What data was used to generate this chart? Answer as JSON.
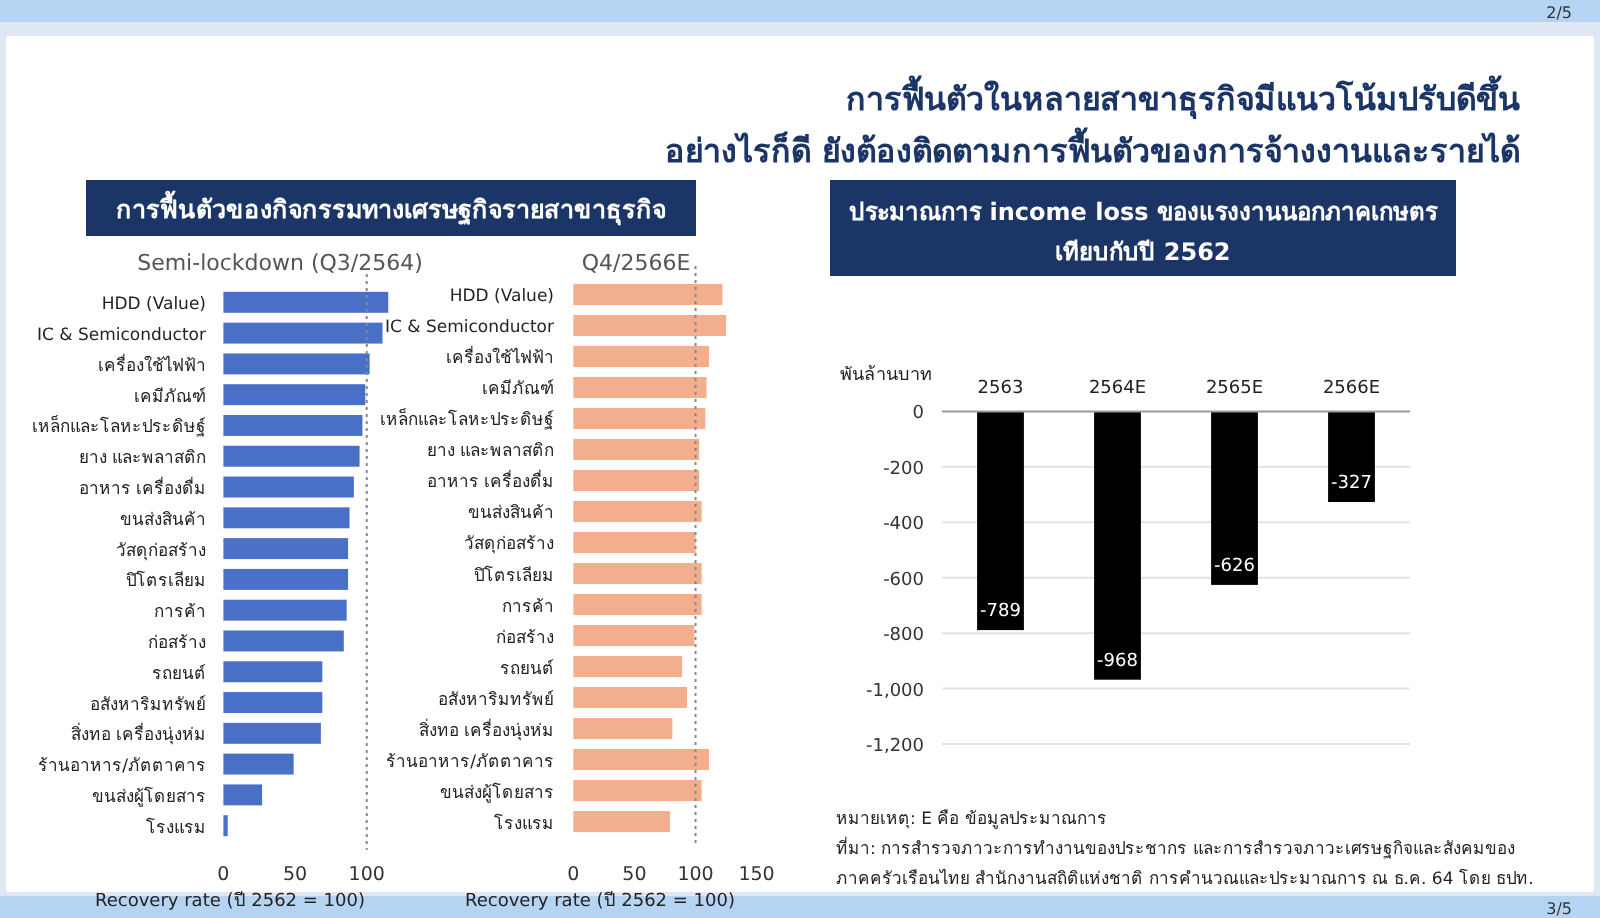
{
  "chart_data": [
    {
      "type": "bar",
      "orientation": "horizontal",
      "title": "การฟื้นตัวของกิจกรรมทางเศรษฐกิจรายสาขาธุรกิจ",
      "subtitle": "Semi-lockdown (Q3/2564)",
      "xlabel": "Recovery rate (ปี 2562 = 100)",
      "annotations": [
        "การฟื้นตัวในหลายสาขาธุรกิจมีแนวโน้มปรับดีขึ้น",
        "อย่างไรก็ดี ยังต้องติดตามการฟื้นตัวของการจ้างงานและรายได้",
        "2/5"
      ],
      "categories": [
        "HDD (Value)",
        "IC & Semiconductor",
        "เครื่องใช้ไฟฟ้า",
        "เคมีภัณฑ์",
        "เหล็กและโลหะประดิษฐ์",
        "ยาง และพลาสติก",
        "อาหาร เครื่องดื่ม",
        "ขนส่งสินค้า",
        "วัสดุก่อสร้าง",
        "ปิโตรเลียม",
        "การค้า",
        "ก่อสร้าง",
        "รถยนต์",
        "อสังหาริมทรัพย์",
        "สิ่งทอ เครื่องนุ่งห่ม",
        "ร้านอาหาร/ภัตตาคาร",
        "ขนส่งผู้โดยสาร",
        "โรงแรม"
      ],
      "values": [
        115,
        111,
        102,
        99,
        97,
        95,
        91,
        88,
        87,
        87,
        86,
        84,
        69,
        69,
        68,
        49,
        27,
        3
      ],
      "color": "#4a6fc6",
      "xlim": [
        0,
        120
      ],
      "xticks": [
        0,
        50,
        100
      ],
      "ref_lines": [
        {
          "axis": "x",
          "value": 100,
          "line_style": "dotted"
        }
      ],
      "grid": false
    },
    {
      "type": "bar",
      "orientation": "horizontal",
      "subtitle": "Q4/2566E",
      "xlabel": "Recovery rate (ปี 2562 = 100)",
      "categories": [
        "HDD (Value)",
        "IC & Semiconductor",
        "เครื่องใช้ไฟฟ้า",
        "เคมีภัณฑ์",
        "เหล็กและโลหะประดิษฐ์",
        "ยาง และพลาสติก",
        "อาหาร เครื่องดื่ม",
        "ขนส่งสินค้า",
        "วัสดุก่อสร้าง",
        "ปิโตรเลียม",
        "การค้า",
        "ก่อสร้าง",
        "รถยนต์",
        "อสังหาริมทรัพย์",
        "สิ่งทอ เครื่องนุ่งห่ม",
        "ร้านอาหาร/ภัตตาคาร",
        "ขนส่งผู้โดยสาร",
        "โรงแรม"
      ],
      "values": [
        122,
        125,
        111,
        109,
        108,
        103,
        103,
        105,
        100,
        105,
        105,
        99,
        89,
        93,
        81,
        111,
        105,
        79
      ],
      "color": "#f3ae8e",
      "xlim": [
        0,
        150
      ],
      "xticks": [
        0,
        50,
        100,
        150
      ],
      "ref_lines": [
        {
          "axis": "x",
          "value": 100,
          "line_style": "dotted"
        }
      ],
      "grid": false
    },
    {
      "type": "bar",
      "title": "ประมาณการ income loss ของแรงงานนอกภาคเกษตร เทียบกับปี 2562",
      "ylabel": "พันล้านบาท",
      "categories": [
        "2563",
        "2564E",
        "2565E",
        "2566E"
      ],
      "values": [
        -789,
        -968,
        -626,
        -327
      ],
      "color": "#000000",
      "data_labels": true,
      "ylim": [
        -1200,
        0
      ],
      "yticks": [
        0,
        -200,
        -400,
        -600,
        -800,
        {
          "value": -1000,
          "label": "-1,000"
        },
        {
          "value": -1200,
          "label": "-1,200"
        }
      ],
      "grid": "y",
      "annotations": [
        "หมายเหตุ: E คือ ข้อมูลประมาณการ",
        "ที่มา: การสำรวจภาวะการทำงานของประชากร และการสำรวจภาวะเศรษฐกิจและสังคมของ",
        "ภาคครัวเรือนไทย สำนักงานสถิติแห่งชาติ การคำนวณและประมาณการ ณ ธ.ค. 64 โดย ธปท.",
        "3/5"
      ]
    }
  ]
}
